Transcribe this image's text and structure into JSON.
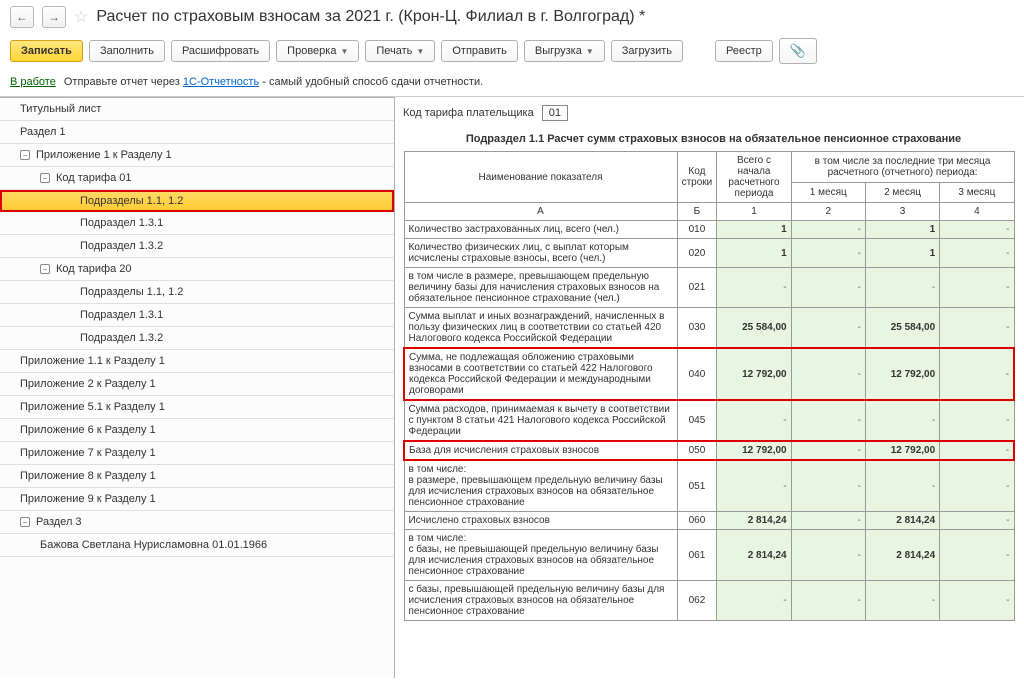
{
  "header": {
    "title": "Расчет по страховым взносам за 2021 г. (Крон-Ц. Филиал в г. Волгоград) *"
  },
  "toolbar": {
    "save": "Записать",
    "fill": "Заполнить",
    "decode": "Расшифровать",
    "check": "Проверка",
    "print": "Печать",
    "send": "Отправить",
    "upload": "Выгрузка",
    "load": "Загрузить",
    "registry": "Реестр"
  },
  "info": {
    "status": "В работе",
    "text1": "Отправьте отчет через ",
    "link": "1С-Отчетность",
    "text2": " - самый удобный способ сдачи отчетности."
  },
  "tree": {
    "t0": "Титульный лист",
    "t1": "Раздел 1",
    "t2": "Приложение 1 к Разделу 1",
    "t3": "Код тарифа 01",
    "t4": "Подразделы 1.1, 1.2",
    "t5": "Подраздел 1.3.1",
    "t6": "Подраздел 1.3.2",
    "t7": "Код тарифа 20",
    "t8": "Подразделы 1.1, 1.2",
    "t9": "Подраздел 1.3.1",
    "t10": "Подраздел 1.3.2",
    "t11": "Приложение 1.1 к Разделу 1",
    "t12": "Приложение 2 к Разделу 1",
    "t13": "Приложение 5.1 к Разделу 1",
    "t14": "Приложение 6 к Разделу 1",
    "t15": "Приложение 7 к Разделу 1",
    "t16": "Приложение 8 к Разделу 1",
    "t17": "Приложение 9 к Разделу 1",
    "t18": "Раздел 3",
    "t19": "Бажова Светлана Нурисламовна 01.01.1966"
  },
  "content": {
    "tariff_label": "Код тарифа плательщика",
    "tariff_code": "01",
    "section_title": "Подраздел 1.1 Расчет сумм страховых взносов на обязательное пенсионное страхование",
    "cols": {
      "name": "Наименование показателя",
      "code": "Код строки",
      "total": "Всего с начала расчетного периода",
      "last3": "в том числе за последние три месяца расчетного (отчетного) периода:",
      "m1": "1 месяц",
      "m2": "2 месяц",
      "m3": "3 месяц",
      "a": "А",
      "b": "Б",
      "c1": "1",
      "c2": "2",
      "c3": "3",
      "c4": "4"
    },
    "rows": [
      {
        "name": "Количество застрахованных лиц, всего (чел.)",
        "code": "010",
        "v1": "1",
        "m1": "-",
        "m2": "1",
        "m3": "-"
      },
      {
        "name": "Количество физических лиц, с выплат которым исчислены страховые взносы, всего (чел.)",
        "code": "020",
        "v1": "1",
        "m1": "-",
        "m2": "1",
        "m3": "-"
      },
      {
        "name": "в том числе в размере, превышающем предельную величину базы для начисления страховых взносов на обязательное пенсионное страхование (чел.)",
        "code": "021",
        "v1": "-",
        "m1": "-",
        "m2": "-",
        "m3": "-"
      },
      {
        "name": "Сумма выплат и иных вознаграждений, начисленных в пользу физических лиц в соответствии со статьей 420 Налогового кодекса Российской Федерации",
        "code": "030",
        "v1": "25 584,00",
        "m1": "-",
        "m2": "25 584,00",
        "m3": "-"
      },
      {
        "name": "Сумма, не подлежащая обложению страховыми взносами в соответствии со статьей 422 Налогового кодекса Российской Федерации и международными договорами",
        "code": "040",
        "v1": "12 792,00",
        "m1": "-",
        "m2": "12 792,00",
        "m3": "-",
        "red": true
      },
      {
        "name": "Сумма расходов, принимаемая к вычету в соответствии с пунктом 8 статьи 421 Налогового кодекса Российской Федерации",
        "code": "045",
        "v1": "-",
        "m1": "-",
        "m2": "-",
        "m3": "-"
      },
      {
        "name": "База для исчисления страховых взносов",
        "code": "050",
        "v1": "12 792,00",
        "m1": "-",
        "m2": "12 792,00",
        "m3": "-",
        "red": true
      },
      {
        "name": "в том числе:\nв размере, превышающем предельную величину базы для исчисления страховых взносов на обязательное пенсионное страхование",
        "code": "051",
        "v1": "-",
        "m1": "-",
        "m2": "-",
        "m3": "-"
      },
      {
        "name": "Исчислено страховых взносов",
        "code": "060",
        "v1": "2 814,24",
        "m1": "-",
        "m2": "2 814,24",
        "m3": "-"
      },
      {
        "name": "в том числе:\nс базы, не превышающей предельную величину базы для исчисления страховых взносов на обязательное пенсионное страхование",
        "code": "061",
        "v1": "2 814,24",
        "m1": "-",
        "m2": "2 814,24",
        "m3": "-"
      },
      {
        "name": "с базы, превышающей предельную величину базы для исчисления страховых взносов на обязательное пенсионное страхование",
        "code": "062",
        "v1": "-",
        "m1": "-",
        "m2": "-",
        "m3": "-"
      }
    ]
  }
}
